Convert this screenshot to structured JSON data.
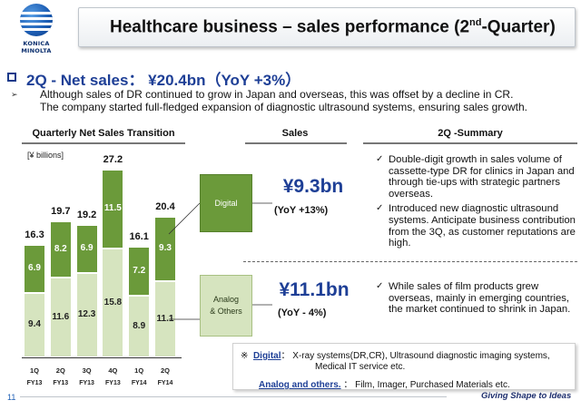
{
  "header": {
    "logo_text": "KONICA MINOLTA",
    "title_pre": "Healthcare business – sales performance (2",
    "title_sup": "nd",
    "title_post": "-Quarter)"
  },
  "headline": {
    "text": "2Q - Net sales： ¥20.4bn（YoY +3%）",
    "arrow": "➢",
    "sub_line1": "Although sales of DR continued to grow in Japan and overseas, this was offset by a decline in CR.",
    "sub_line2": "The company started full-fledged expansion of diagnostic ultrasound systems, ensuring sales growth."
  },
  "sections": {
    "chart": "Quarterly Net Sales Transition",
    "sales": "Sales",
    "summary": "2Q -Summary"
  },
  "chart_data": {
    "type": "bar",
    "stacked": true,
    "unit_label": "[¥ billions]",
    "categories": [
      "1Q FY13",
      "2Q FY13",
      "3Q FY13",
      "4Q FY13",
      "1Q FY14",
      "2Q FY14"
    ],
    "tick_quarters": [
      "1Q",
      "2Q",
      "3Q",
      "4Q",
      "1Q",
      "2Q"
    ],
    "tick_years": [
      "FY13",
      "FY13",
      "FY13",
      "FY13",
      "FY14",
      "FY14"
    ],
    "series": [
      {
        "name": "Analog & Others",
        "values": [
          9.4,
          11.6,
          12.3,
          15.8,
          8.9,
          11.1
        ],
        "color": "#d6e4bf",
        "label_color": "#222222"
      },
      {
        "name": "Digital",
        "values": [
          6.9,
          8.2,
          6.9,
          11.5,
          7.2,
          9.3
        ],
        "color": "#6b9a3a",
        "label_color": "#ffffff"
      }
    ],
    "totals": [
      "16.3",
      "19.7",
      "19.2",
      "27.2",
      "16.1",
      "20.4"
    ],
    "ylim": [
      0,
      30
    ]
  },
  "categories": {
    "digital": "Digital",
    "analog_line1": "Analog",
    "analog_line2": "& Others"
  },
  "sales": {
    "digital_value": "¥9.3bn",
    "digital_yoy": "(YoY +13%)",
    "analog_value": "¥11.1bn",
    "analog_yoy": "(YoY - 4%)"
  },
  "summary": {
    "check": "✓",
    "digital_items": [
      "Double-digit growth in sales volume of cassette-type DR for clinics in Japan and through tie-ups with strategic partners overseas.",
      "Introduced new diagnostic ultrasound systems. Anticipate business contribution from the 3Q, as customer reputations are high."
    ],
    "analog_items": [
      "While sales of film products grew overseas, mainly in emerging countries, the market continued to shrink in Japan."
    ]
  },
  "footnote": {
    "mark": "※",
    "digital_key": "Digital",
    "digital_sep": "：",
    "digital_desc": "X-ray systems(DR,CR), Ultrasound diagnostic imaging systems,",
    "digital_desc2": "Medical IT service etc.",
    "analog_key": "Analog and others.",
    "analog_sep": "：",
    "analog_desc": "Film, Imager, Purchased Materials etc."
  },
  "footer": {
    "page_number": "11",
    "tagline": "Giving Shape to Ideas"
  },
  "colors": {
    "accent_blue": "#1e3f96",
    "digital_green": "#6b9a3a",
    "analog_green": "#d6e4bf"
  }
}
